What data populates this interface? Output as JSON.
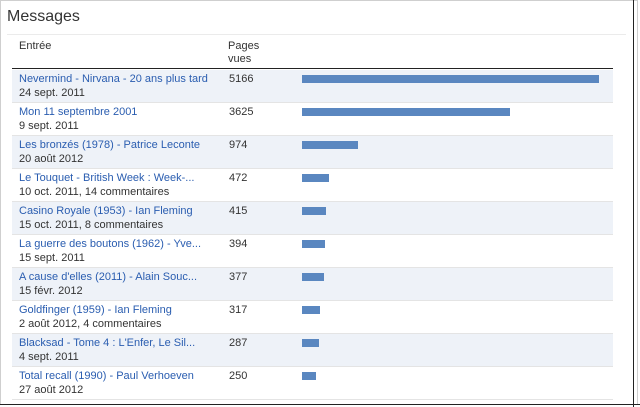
{
  "title": "Messages",
  "columns": {
    "entry": "Entrée",
    "views": "Pages vues"
  },
  "max_views": 5166,
  "rows": [
    {
      "title": "Nevermind - Nirvana - 20 ans plus tard",
      "meta": "24 sept. 2011",
      "views": 5166
    },
    {
      "title": "Mon 11 septembre 2001",
      "meta": "9 sept. 2011",
      "views": 3625
    },
    {
      "title": "Les bronzés (1978) - Patrice Leconte",
      "meta": "20 août 2012",
      "views": 974
    },
    {
      "title": "Le Touquet - British Week : Week-...",
      "meta": "10 oct. 2011, 14 commentaires",
      "views": 472
    },
    {
      "title": "Casino Royale (1953) - Ian Fleming",
      "meta": "15 oct. 2011, 8 commentaires",
      "views": 415
    },
    {
      "title": "La guerre des boutons (1962) - Yve...",
      "meta": "15 sept. 2011",
      "views": 394
    },
    {
      "title": "A cause d'elles (2011) - Alain Souc...",
      "meta": "15 févr. 2012",
      "views": 377
    },
    {
      "title": "Goldfinger (1959) - Ian Fleming",
      "meta": "2 août 2012, 4 commentaires",
      "views": 317
    },
    {
      "title": "Blacksad - Tome 4 : L'Enfer, Le Sil...",
      "meta": "4 sept. 2011",
      "views": 287
    },
    {
      "title": "Total recall (1990) - Paul Verhoeven",
      "meta": "27 août 2012",
      "views": 250
    }
  ],
  "colors": {
    "link": "#2a5db0",
    "bar": "#5a87c0",
    "row_alt": "#eef2f8"
  }
}
